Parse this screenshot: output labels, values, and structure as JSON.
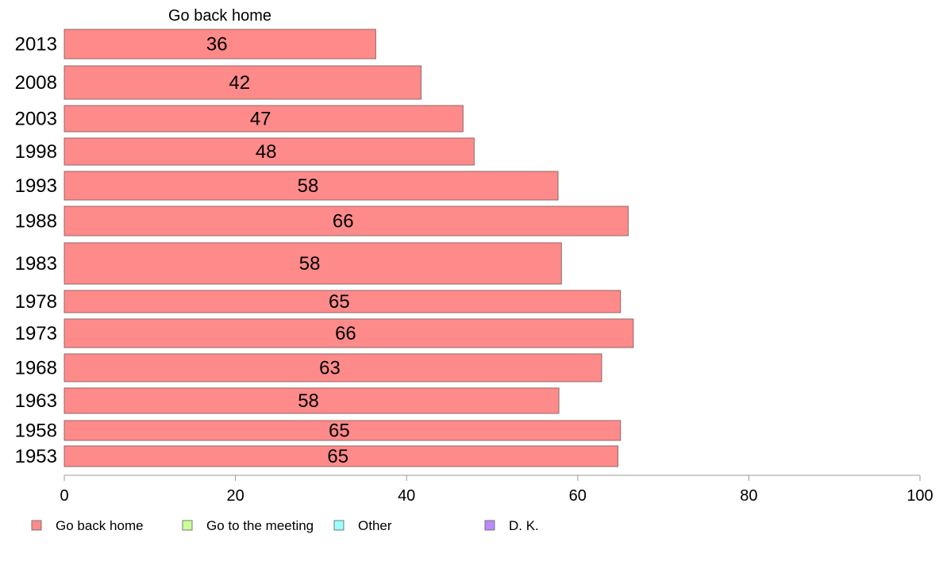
{
  "chart_data": {
    "type": "bar",
    "orientation": "horizontal",
    "column_title": "Go back home",
    "categories": [
      "2013",
      "2008",
      "2003",
      "1998",
      "1993",
      "1988",
      "1983",
      "1978",
      "1973",
      "1968",
      "1963",
      "1958",
      "1953"
    ],
    "series": [
      {
        "name": "Go back home",
        "color": "#ff8a8a",
        "values": [
          36.4,
          41.7,
          46.6,
          47.9,
          57.7,
          65.9,
          58.1,
          65.0,
          66.5,
          62.8,
          57.8,
          65.0,
          64.7
        ],
        "labels": [
          "36",
          "42",
          "47",
          "48",
          "58",
          "66",
          "58",
          "65",
          "66",
          "63",
          "58",
          "65",
          "65"
        ]
      }
    ],
    "xlim": [
      0,
      100
    ],
    "x_ticks": [
      "0",
      "20",
      "40",
      "60",
      "80",
      "100"
    ],
    "grid": false,
    "legend": {
      "position": "bottom",
      "items": [
        {
          "label": "Go back home",
          "color": "#ff8a8a"
        },
        {
          "label": "Go to the meeting",
          "color": "#ccff99"
        },
        {
          "label": "Other",
          "color": "#99ffff"
        },
        {
          "label": "D. K.",
          "color": "#bb88ff"
        }
      ]
    }
  }
}
